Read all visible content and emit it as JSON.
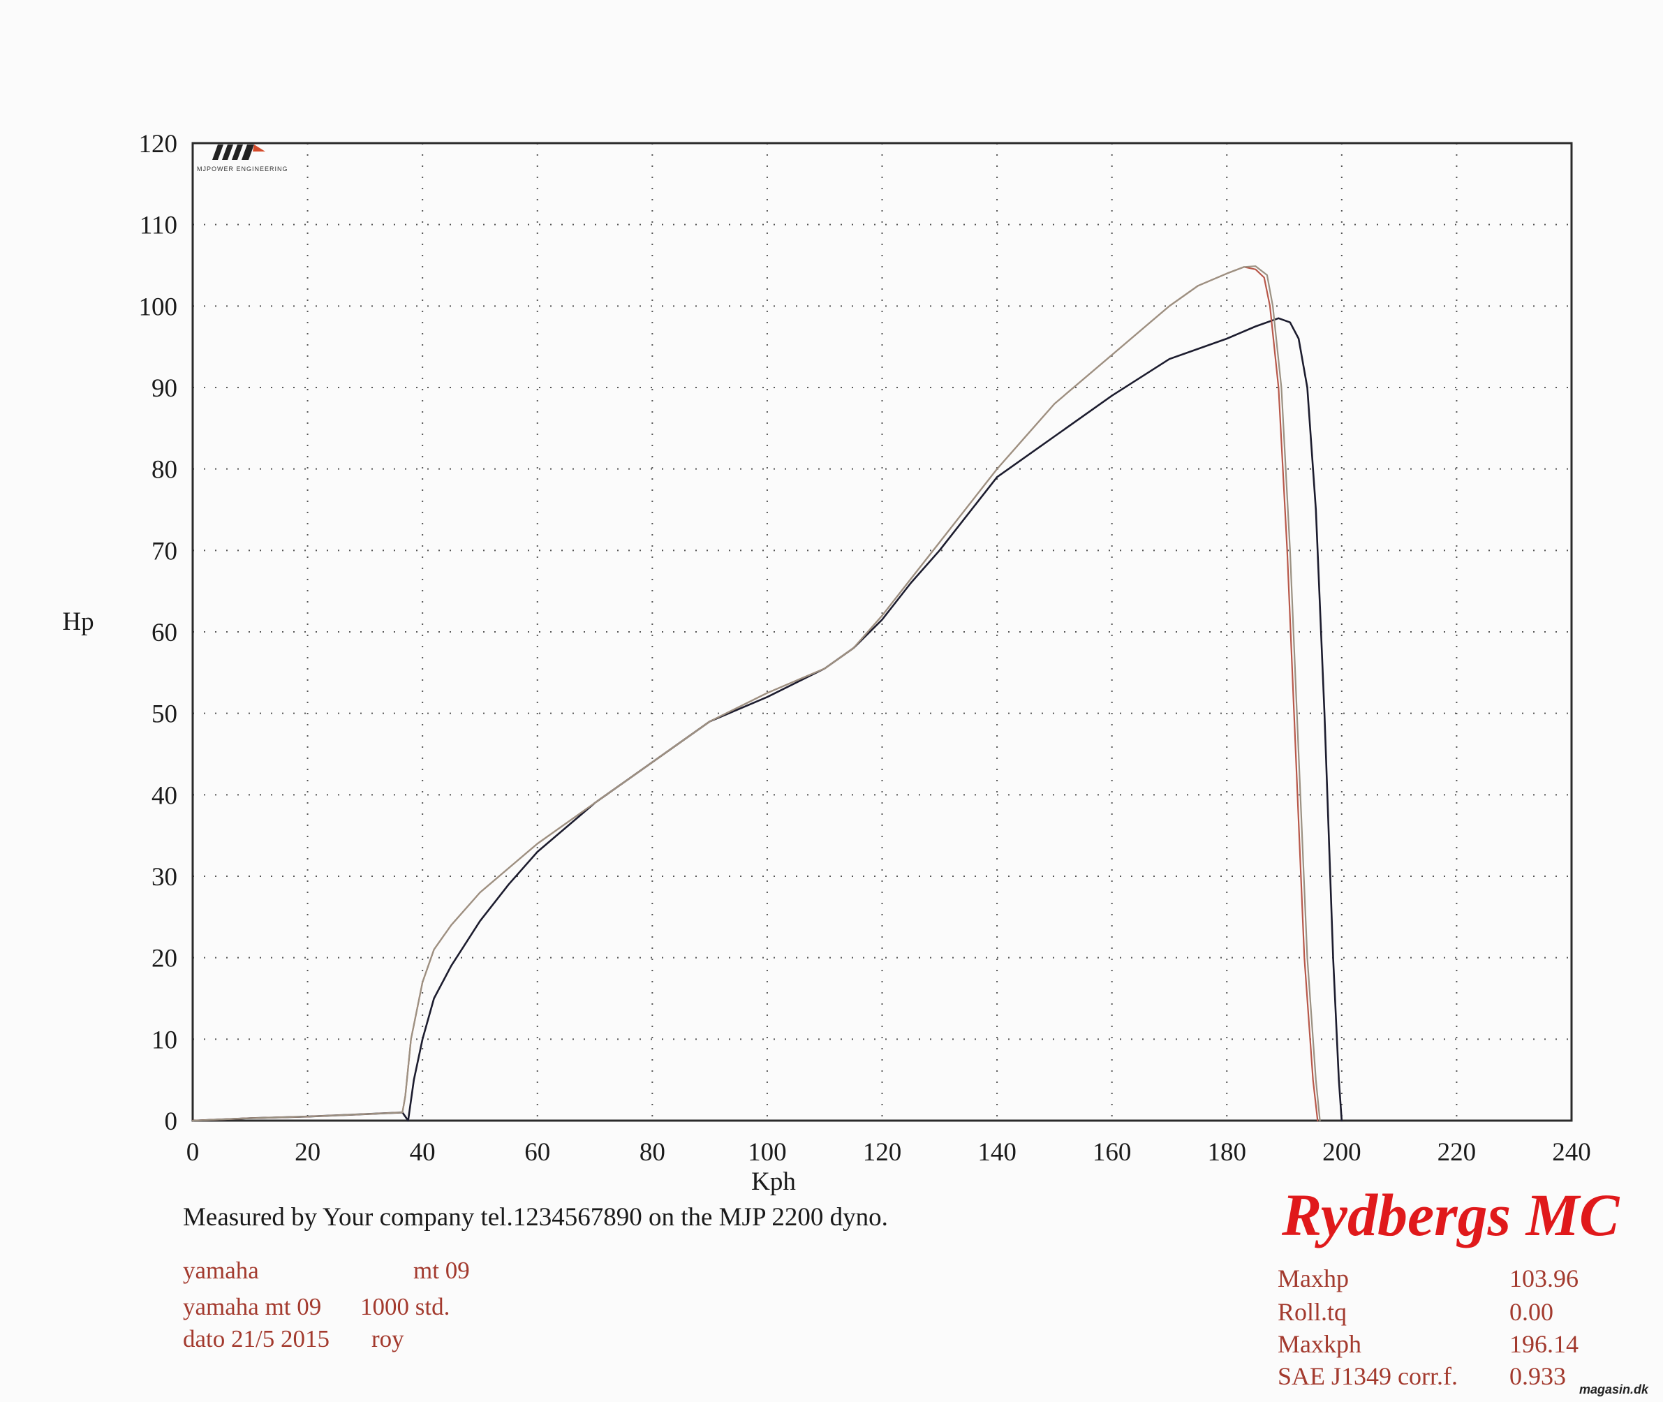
{
  "chart_data": {
    "type": "line",
    "title": "",
    "xlabel": "Kph",
    "ylabel": "Hp",
    "xlim": [
      0,
      240
    ],
    "ylim": [
      0,
      120
    ],
    "x_ticks": [
      0,
      20,
      40,
      60,
      80,
      100,
      120,
      140,
      160,
      180,
      200,
      220,
      240
    ],
    "y_ticks": [
      0,
      10,
      20,
      30,
      40,
      50,
      60,
      70,
      80,
      90,
      100,
      110,
      120
    ],
    "grid": true,
    "legend": "none",
    "series": [
      {
        "color": "#1c1c2e",
        "x": [
          0,
          10,
          20,
          30,
          36.5,
          37.5,
          38.5,
          40,
          42,
          45,
          50,
          55,
          60,
          70,
          80,
          90,
          100,
          110,
          115,
          120,
          125,
          130,
          140,
          145,
          150,
          160,
          170,
          180,
          185,
          189,
          191,
          192.5,
          194,
          195.5,
          197,
          198.5,
          199.5,
          200
        ],
        "y": [
          0,
          0.3,
          0.5,
          0.8,
          1.0,
          0,
          5,
          10,
          15,
          19,
          24.5,
          29,
          33,
          39,
          44,
          49,
          52,
          55.5,
          58,
          61.5,
          66,
          70,
          79,
          81.5,
          84,
          89,
          93.5,
          96,
          97.5,
          98.5,
          98,
          96,
          90,
          75,
          50,
          20,
          5,
          0
        ]
      },
      {
        "color": "#b8584a",
        "x": [
          0,
          10,
          20,
          30,
          36.5,
          37,
          38,
          40,
          42,
          45,
          50,
          55,
          60,
          70,
          80,
          90,
          100,
          110,
          115,
          120,
          125,
          130,
          140,
          145,
          150,
          160,
          170,
          175,
          180,
          183,
          185,
          186.5,
          187.5,
          189,
          190.5,
          192,
          193.5,
          195,
          195.8
        ],
        "y": [
          0,
          0.3,
          0.5,
          0.8,
          1.0,
          3,
          10,
          17,
          21,
          24,
          28,
          31,
          34,
          39,
          44,
          49,
          52.5,
          55.5,
          58,
          62,
          66.5,
          71,
          80,
          84,
          88,
          94,
          100,
          102.5,
          104,
          104.8,
          104.5,
          103.5,
          100,
          90,
          70,
          45,
          20,
          5,
          0
        ]
      },
      {
        "color": "#9b9182",
        "x": [
          0,
          10,
          20,
          30,
          36.5,
          37,
          38,
          40,
          42,
          45,
          50,
          55,
          60,
          70,
          80,
          90,
          100,
          110,
          115,
          120,
          125,
          130,
          140,
          145,
          150,
          160,
          170,
          175,
          180,
          183,
          185,
          187,
          188,
          189.5,
          191,
          192.5,
          194,
          195.5,
          196.2
        ],
        "y": [
          0,
          0.3,
          0.5,
          0.8,
          1.0,
          3,
          10,
          17,
          21,
          24,
          28,
          31,
          34,
          39,
          44,
          49,
          52.5,
          55.5,
          58,
          62,
          66.5,
          71,
          80,
          84,
          88,
          94,
          100,
          102.5,
          104,
          104.8,
          104.9,
          103.8,
          100,
          90,
          70,
          45,
          20,
          5,
          0
        ]
      }
    ]
  },
  "logo": {
    "text": "MJPOWER ENGINEERING"
  },
  "caption": "Measured by Your company tel.1234567890 on the MJP 2200 dyno.",
  "info": {
    "line1_a": "yamaha",
    "line1_b": "mt 09",
    "line2_a": "yamaha mt 09",
    "line2_b": "1000 std.",
    "line3_a": "dato 21/5 2015",
    "line3_b": "roy"
  },
  "brand": "Rydbergs MC",
  "stats": [
    {
      "label": "Maxhp",
      "value": "103.96"
    },
    {
      "label": "Roll.tq",
      "value": "0.00"
    },
    {
      "label": "Maxkph",
      "value": "196.14"
    },
    {
      "label": "SAE J1349 corr.f.",
      "value": "0.933"
    }
  ],
  "watermark": "magasin.dk",
  "colors": {
    "info_text": "#a33a2e",
    "brand": "#e0191b",
    "grid": "#555555"
  }
}
